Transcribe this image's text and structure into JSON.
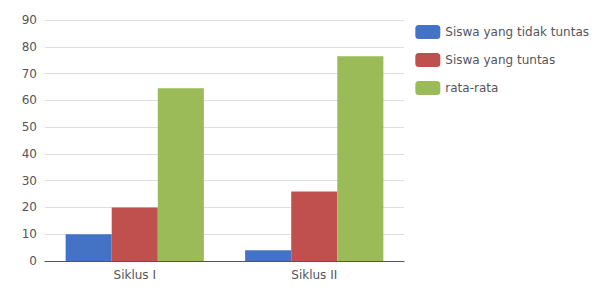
{
  "chart_data": {
    "type": "bar",
    "categories": [
      "Siklus I",
      "Siklus II"
    ],
    "series": [
      {
        "name": "Siswa yang tidak tuntas",
        "color": "#4472C4",
        "values": [
          10,
          4
        ]
      },
      {
        "name": "Siswa yang tuntas",
        "color": "#C0504D",
        "values": [
          20,
          26
        ]
      },
      {
        "name": "rata-rata",
        "color": "#9BBB59",
        "values": [
          64.5,
          76.5
        ]
      }
    ],
    "ylim": [
      0,
      90
    ],
    "yticks": [
      0,
      10,
      20,
      30,
      40,
      50,
      60,
      70,
      80,
      90
    ],
    "grid": true,
    "legend": "upper right"
  }
}
